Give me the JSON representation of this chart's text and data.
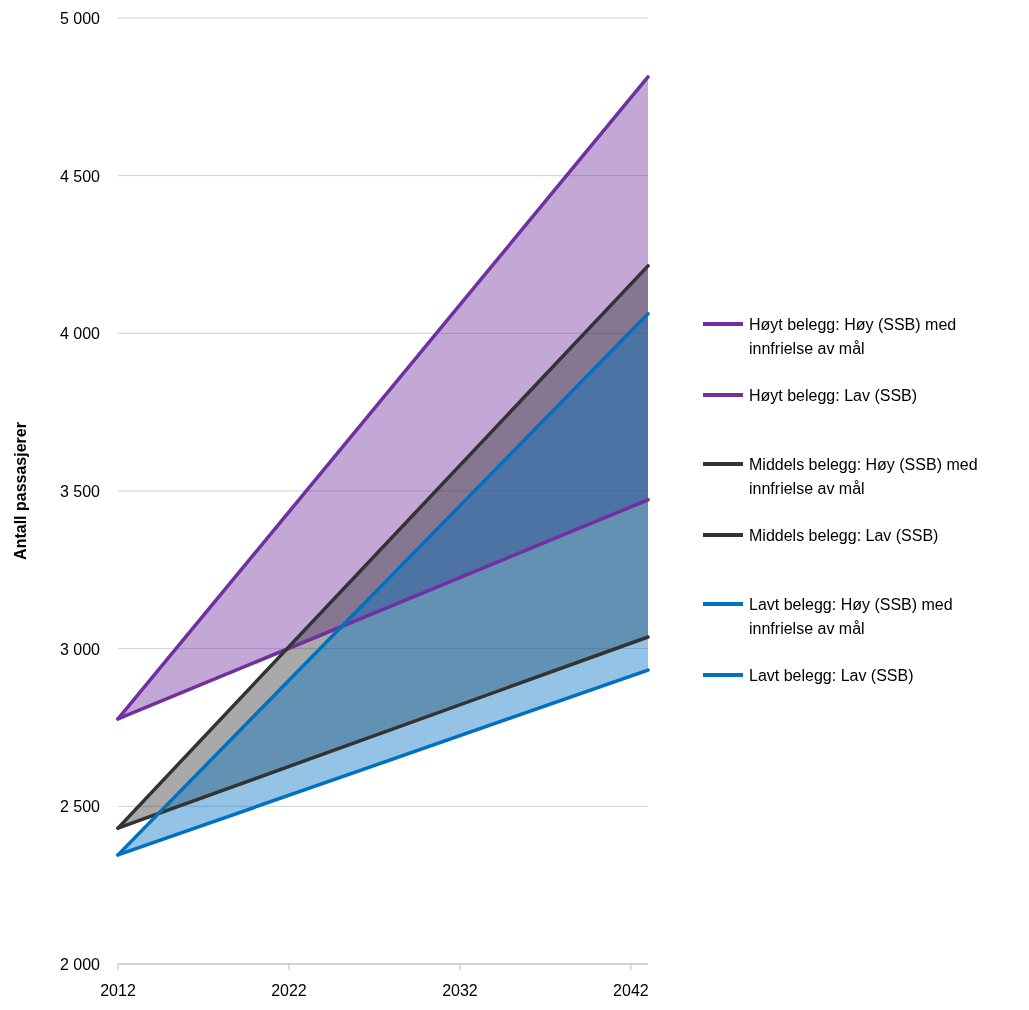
{
  "chart_data": {
    "type": "line",
    "ylabel": "Antall passasjerer",
    "x": [
      2012,
      2043
    ],
    "xlim": [
      2012,
      2043
    ],
    "xticks": [
      2012,
      2022,
      2032,
      2042
    ],
    "ylim": [
      2000,
      5000
    ],
    "yticks": [
      {
        "value": 2000,
        "label": "2 000"
      },
      {
        "value": 2500,
        "label": "2 500"
      },
      {
        "value": 3000,
        "label": "3 000"
      },
      {
        "value": 3500,
        "label": "3 500"
      },
      {
        "value": 4000,
        "label": "4 000"
      },
      {
        "value": 4500,
        "label": "4 500"
      },
      {
        "value": 5000,
        "label": "5 000"
      }
    ],
    "grid": "y",
    "legend": "right",
    "line_style": "solid",
    "series": [
      {
        "name": "Høyt belegg: Høy (SSB) med innfrielse av mål",
        "color": "#7030a0",
        "values": [
          2777,
          4813
        ],
        "lower": [
          2777,
          3472
        ],
        "upper": [
          2777,
          4813
        ]
      },
      {
        "name": "Høyt belegg: Lav (SSB)",
        "color": "#7030a0",
        "values": [
          2777,
          3472
        ]
      },
      {
        "name": "Middels belegg: Høy (SSB) med innfrielse av mål",
        "color": "#333333",
        "values": [
          2431,
          4214
        ],
        "lower": [
          2431,
          3037
        ],
        "upper": [
          2431,
          4214
        ]
      },
      {
        "name": "Middels belegg: Lav (SSB)",
        "color": "#333333",
        "values": [
          2431,
          3037
        ]
      },
      {
        "name": "Lavt belegg: Høy (SSB) med innfrielse av mål",
        "color": "#0070c0",
        "values": [
          2346,
          4062
        ],
        "lower": [
          2346,
          2932
        ],
        "upper": [
          2346,
          4062
        ]
      },
      {
        "name": "Lavt belegg: Lav (SSB)",
        "color": "#0070c0",
        "values": [
          2346,
          2932
        ]
      }
    ]
  }
}
